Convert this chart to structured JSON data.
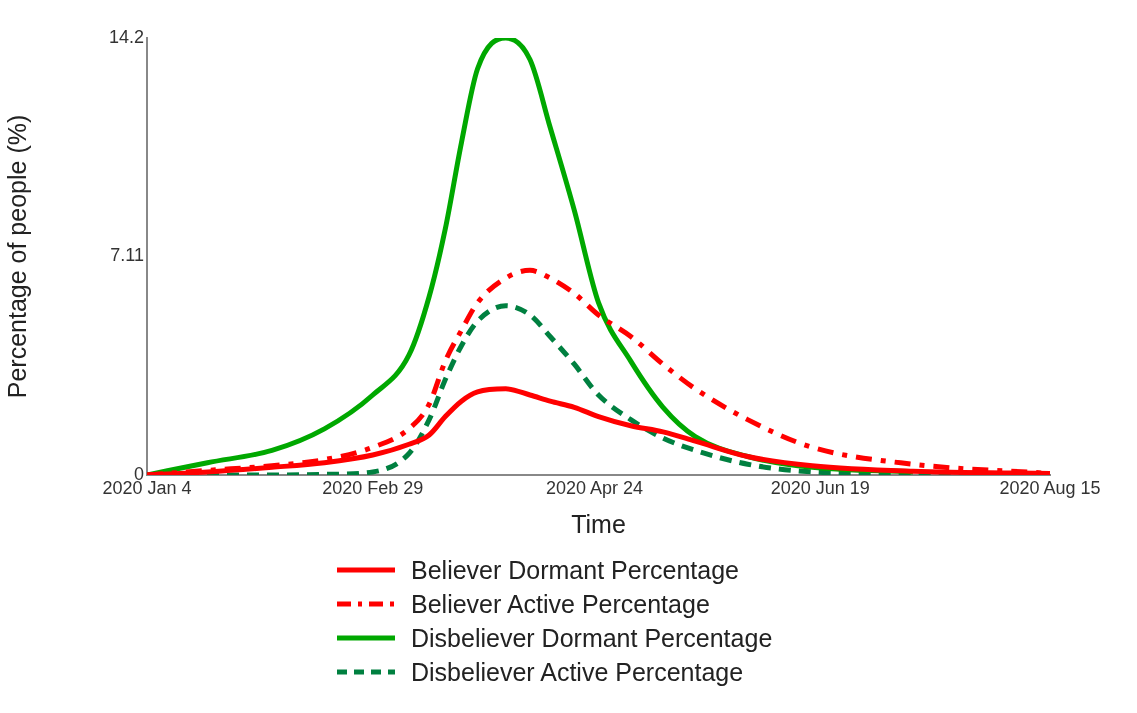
{
  "chart_data": {
    "type": "line",
    "xlabel": "Time",
    "ylabel": "Percentage of people (%)",
    "x": [
      "2020-01-04",
      "2020-01-19",
      "2020-02-04",
      "2020-02-17",
      "2020-02-29",
      "2020-03-09",
      "2020-03-14",
      "2020-03-18",
      "2020-03-22",
      "2020-03-26",
      "2020-04-02",
      "2020-04-08",
      "2020-04-13",
      "2020-04-19",
      "2020-04-25",
      "2020-05-03",
      "2020-05-11",
      "2020-05-19",
      "2020-06-01",
      "2020-06-17",
      "2020-07-12",
      "2020-08-15"
    ],
    "series": [
      {
        "name": "Believer Dormant Percentage",
        "color": "#ff0000",
        "line_style": "solid",
        "values": [
          0,
          0.1,
          0.25,
          0.4,
          0.65,
          1.0,
          1.3,
          1.9,
          2.4,
          2.7,
          2.8,
          2.6,
          2.4,
          2.2,
          1.9,
          1.6,
          1.4,
          1.1,
          0.6,
          0.3,
          0.12,
          0.05
        ]
      },
      {
        "name": "Believer Active Percentage",
        "color": "#ff0000",
        "line_style": "dashdot",
        "values": [
          0,
          0.15,
          0.3,
          0.5,
          0.9,
          1.5,
          2.3,
          3.7,
          4.7,
          5.6,
          6.4,
          6.65,
          6.4,
          5.9,
          5.2,
          4.5,
          3.6,
          2.8,
          1.8,
          0.9,
          0.35,
          0.05
        ]
      },
      {
        "name": "Disbeliever Dormant Percentage",
        "color": "#00a800",
        "line_style": "solid",
        "values": [
          0,
          0.4,
          0.8,
          1.5,
          2.6,
          3.9,
          5.8,
          8.0,
          10.8,
          13.2,
          14.2,
          13.5,
          11.3,
          8.6,
          5.6,
          3.7,
          2.2,
          1.25,
          0.6,
          0.25,
          0.1,
          null
        ]
      },
      {
        "name": "Disbeliever Active Percentage",
        "color": "#008040",
        "line_style": "dashed",
        "values": [
          0,
          0,
          0,
          0.02,
          0.1,
          0.7,
          1.8,
          3.1,
          4.2,
          5.0,
          5.5,
          5.2,
          4.5,
          3.6,
          2.6,
          1.8,
          1.2,
          0.8,
          0.35,
          0.1,
          0.03,
          0
        ]
      }
    ],
    "xlim": [
      "2020-01-04",
      "2020-08-15"
    ],
    "xticks": [
      {
        "value": "2020-01-04",
        "label": "2020 Jan 4"
      },
      {
        "value": "2020-02-29",
        "label": "2020 Feb 29"
      },
      {
        "value": "2020-04-24",
        "label": "2020 Apr 24"
      },
      {
        "value": "2020-06-19",
        "label": "2020 Jun 19"
      },
      {
        "value": "2020-08-15",
        "label": "2020 Aug 15"
      }
    ],
    "ylim": [
      0,
      14.2
    ],
    "yticks": [
      0,
      7.11,
      14.2
    ],
    "grid": false,
    "legend": "bottom"
  }
}
